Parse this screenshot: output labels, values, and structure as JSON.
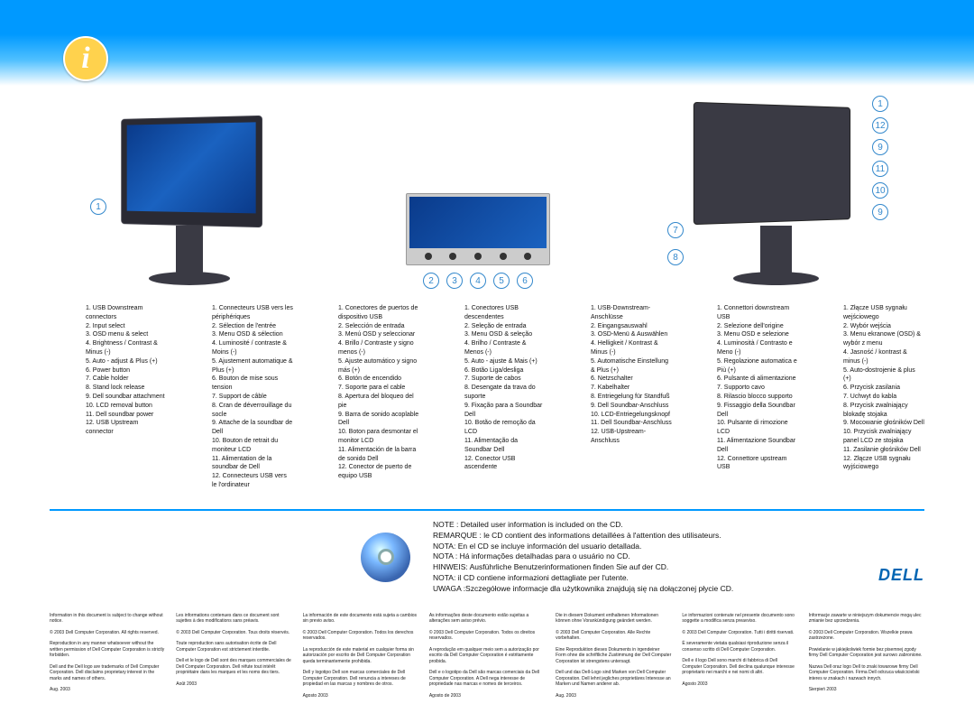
{
  "brand_logo": "DELL",
  "callout_labels": [
    "1",
    "2",
    "3",
    "4",
    "5",
    "6",
    "7",
    "8",
    "9",
    "10",
    "11",
    "12"
  ],
  "lists": {
    "en": [
      "USB Downstream connectors",
      "Input select",
      "OSD menu & select",
      "Brightness / Contrast & Minus (-)",
      "Auto - adjust & Plus (+)",
      "Power button",
      "Cable holder",
      "Stand lock release",
      "Dell soundbar attachment",
      "LCD removal button",
      "Dell soundbar power",
      "USB Upstream connector"
    ],
    "fr": [
      "Connecteurs USB vers les périphériques",
      "Sélection de l'entrée",
      "Menu OSD & sélection",
      "Luminosité / contraste & Moins (-)",
      "Ajustement automatique & Plus (+)",
      "Bouton de mise sous tension",
      "Support de câble",
      "Cran de déverrouillage du socle",
      "Attache de la soundbar de Dell",
      "Bouton de retrait du moniteur LCD",
      "Alimentation de la soundbar de Dell",
      "Connecteurs USB vers le l'ordinateur"
    ],
    "es": [
      "Conectores de puertos de dispositivo USB",
      "Selección de entrada",
      "Menú OSD y seleccionar",
      "Brillo / Contraste y signo menos (-)",
      "Ajuste automático y signo más (+)",
      "Botón de encendido",
      "Soporte para el cable",
      "Apertura del bloqueo del pie",
      "Barra de sonido acoplable Dell",
      "Boton para desmontar el monitor LCD",
      "Alimentación de la barra de sonido Dell",
      "Conector de puerto de equipo USB"
    ],
    "pt": [
      "Conectores USB descendentes",
      "Seleção de entrada",
      "Menu OSD & seleção",
      "Brilho / Contraste & Menos (-)",
      "Auto - ajuste & Mais (+)",
      "Botão Liga/desliga",
      "Suporte de cabos",
      "Desengate da trava do suporte",
      "Fixação para a Soundbar Dell",
      "Botão de remoção da LCD",
      "Alimentação da Soundbar Dell",
      "Conector USB ascendente"
    ],
    "de": [
      "USB-Downstream-Anschlüsse",
      "Eingangsauswahl",
      "OSD-Menü & Auswählen",
      "Helligkeit / Kontrast & Minus (-)",
      "Automatische Einstellung & Plus (+)",
      "Netzschalter",
      "Kabelhalter",
      "Entriegelung für Standfuß",
      "Dell Soundbar-Anschluss",
      "LCD-Entriegelungsknopf",
      "Dell Soundbar-Anschluss",
      "USB-Upstream-Anschluss"
    ],
    "it": [
      "Connettori downstream USB",
      "Selezione dell'origine",
      "Menu OSD e selezione",
      "Luminosità / Contrasto e Meno (-)",
      "Regolazione automatica e Più (+)",
      "Pulsante di alimentazione",
      "Supporto cavo",
      "Rilascio blocco supporto",
      "Fissaggio della Soundbar Dell",
      "Pulsante di rimozione LCD",
      "Alimentazione Soundbar Dell",
      "Connettore upstream USB"
    ],
    "pl": [
      "Złącze USB sygnału wejściowego",
      "Wybór wejścia",
      "Menu ekranowe (OSD) & wybór z menu",
      "Jasność / kontrast & minus (-)",
      "Auto-dostrojenie & plus (+)",
      "Przycisk zasilania",
      "Uchwyt do kabla",
      "Przycisk zwalniający blokadę stojaka",
      "Mocowanie głośników Dell",
      "Przycisk zwalniający panel LCD ze stojaka",
      "Zasilanie głośników Dell",
      "Złącze USB sygnału wyjściowego"
    ]
  },
  "notes": [
    "NOTE : Detailed user information is included on the CD.",
    "REMARQUE : le CD contient des informations detaillées à l'attention des utilisateurs.",
    "NOTA: En el CD se incluye información del usuario detallada.",
    "NOTA : Há informações detalhadas para o usuário no CD.",
    "HINWEIS: Ausführliche Benutzerinformationen finden Sie auf der CD.",
    "NOTA: il CD contiene informazioni dettagliate per l'utente.",
    "UWAGA :Szczegółowe informacje dla użytkownika znajdują się na dołączonej płycie CD."
  ],
  "footer_texts": {
    "p1": "Information in this document is subject to change without notice.",
    "p2": "© 2003 Dell Computer Corporation. All rights reserved.",
    "p3": "Reproduction in any manner whatsoever without the written permission of Dell Computer Corporation is strictly forbidden.",
    "p4": "Dell and the Dell logo are trademarks of Dell Computer Corporation. Dell disclaims proprietary interest in the marks and names of others.",
    "date": "Aug. 2003"
  },
  "footer_cols": [
    {
      "p1": "Les informations contenues dans ce document sont sujettes à des modifications sans préavis.",
      "p2": "© 2003 Dell Computer Corporation. Tous droits réservés.",
      "p3": "Toute reproduction sans autorisation écrite de Dell Computer Corporation est strictement interdite.",
      "p4": "Dell et le logo de Dell sont des marques commerciales de Dell Computer Corporation. Dell réfute tout intérêt propriétaire dans les marques et les noms des tiers.",
      "date": "Août 2003"
    },
    {
      "p1": "La información de este documento está sujeta a cambios sin previo aviso.",
      "p2": "© 2003 Dell Computer Corporation. Todos los derechos reservados.",
      "p3": "La reproducción de este material en cualquier forma sin autorización por escrito de Dell Computer Corporation queda terminantemente prohibida.",
      "p4": "Dell y logotipo Dell son marcas comerciales de Dell Computer Corporation. Dell renuncia a intereses de propiedad en las marcas y nombres de otros.",
      "date": "Agosto 2003"
    },
    {
      "p1": "As informações deste documento estão sujeitas a alterações sem aviso prévio.",
      "p2": "© 2003 Dell Computer Corporation. Todos os direitos reservados.",
      "p3": "A reprodução em qualquer meio sem a autorização por escrito da Dell Computer Corporation é estritamente proibida.",
      "p4": "Dell e o logotipo da Dell são marcas comerciais da Dell Computer Corporation. A Dell nega interesse de propriedade nas marcas e nomes de terceiros.",
      "date": "Agosto de 2003"
    },
    {
      "p1": "Die in diesem Dokument enthaltenen Informationen können ohne Vorankündigung geändert werden.",
      "p2": "© 2003 Dell Computer Corporation. Alle Rechte vorbehalten.",
      "p3": "Eine Reproduktion dieses Dokuments in irgendeiner Form ohne die schriftliche Zustimmung der Dell Computer Corporation ist strengstens untersagt.",
      "p4": "Dell und das Dell-Logo sind Marken von Dell Computer Corporation. Dell lehnt jegliches proprietäres Interesse an Marken und Namen anderer ab.",
      "date": "Aug. 2003"
    },
    {
      "p1": "Le informazioni contenute nel presente documento sono soggette a modifica senza preavviso.",
      "p2": "© 2003 Dell Computer Corporation. Tutti i diritti riservati.",
      "p3": "È severamente vietata qualsiasi riproduzione senza il consenso scritto di Dell Computer Corporation.",
      "p4": "Dell e il logo Dell sono marchi di fabbrica di Dell Computer Corporation. Dell declina qualunque interesse proprietario nei marchi e nei nomi di altri.",
      "date": "Agosto 2003"
    },
    {
      "p1": "Informacje zawarte w niniejszym dokumencie mogą ulec zmianie bez uprzedzenia.",
      "p2": "© 2003 Dell Computer Corporation. Wszelkie prawa zastrzeżone.",
      "p3": "Powielanie w jakiejkolwiek formie bez pisemnej zgody firmy Dell Computer Corporation jest surowo zabronione.",
      "p4": "Nazwa Dell oraz logo Dell to znaki towarowe firmy Dell Computer Corporation. Firma Dell odrzuca właścicielski interes w znakach i nazwach innych.",
      "date": "Sierpień 2003"
    }
  ]
}
